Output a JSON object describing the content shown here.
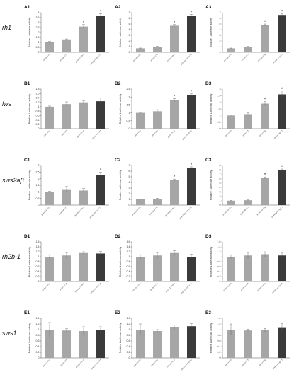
{
  "figure": {
    "rows": [
      {
        "gene": "rh1",
        "panels": [
          "A1",
          "A2",
          "A3"
        ]
      },
      {
        "gene": "lws",
        "panels": [
          "B1",
          "B2",
          "B3"
        ]
      },
      {
        "gene": "sws2aβ",
        "panels": [
          "C1",
          "C2",
          "C3"
        ]
      },
      {
        "gene": "rh2b-1",
        "panels": [
          "D1",
          "D2",
          "D3"
        ]
      },
      {
        "gene": "sws1",
        "panels": [
          "E1",
          "E2",
          "E3"
        ]
      }
    ],
    "colors": {
      "light_bar": "#a6a6a6",
      "dark_bar": "#3a3a3a",
      "axis": "#555555"
    }
  },
  "chart_data": [
    {
      "id": "A1",
      "type": "bar",
      "ylabel": "Relative Luciferase activity",
      "ylim": [
        0,
        4
      ],
      "yticks": [
        0,
        0.5,
        1,
        1.5,
        2,
        2.5,
        3,
        3.5,
        4
      ],
      "categories": [
        "prhoda+rTr",
        "prhoda+rT3",
        "prhoda+rTrb-4",
        "prhoda+rTrb-a+T3"
      ],
      "values": [
        1.0,
        1.3,
        2.6,
        3.7
      ],
      "errors": [
        0.1,
        0.05,
        0.2,
        0.2
      ],
      "significant": [
        false,
        false,
        true,
        true
      ]
    },
    {
      "id": "A2",
      "type": "bar",
      "ylabel": "Relative Luciferase activity",
      "ylim": [
        0,
        7
      ],
      "yticks": [
        0,
        1,
        2,
        3,
        4,
        5,
        6,
        7
      ],
      "categories": [
        "prhoda+rTrb",
        "prhoda+rT3",
        "prhoda+rTrb-b",
        "prhoda+rTrb-b+T3"
      ],
      "values": [
        0.7,
        1.0,
        4.7,
        6.5
      ],
      "errors": [
        0.05,
        0.05,
        0.2,
        0.2
      ],
      "significant": [
        false,
        false,
        true,
        true
      ]
    },
    {
      "id": "A3",
      "type": "bar",
      "ylabel": "Relative Luciferase activity",
      "ylim": [
        0,
        7
      ],
      "yticks": [
        0,
        1,
        2,
        3,
        4,
        5,
        6,
        7
      ],
      "categories": [
        "prhoda+rTrb",
        "prhoda+rT3",
        "prhoda+rTrg",
        "prhoda+rTrg+T3"
      ],
      "values": [
        0.7,
        1.0,
        4.8,
        6.6
      ],
      "errors": [
        0.05,
        0.05,
        0.2,
        0.2
      ],
      "significant": [
        false,
        false,
        true,
        true
      ]
    },
    {
      "id": "B1",
      "type": "bar",
      "ylabel": "Relative Luciferase activity",
      "ylim": [
        0,
        1.8
      ],
      "yticks": [
        0,
        0.2,
        0.4,
        0.6,
        0.8,
        1,
        1.2,
        1.4,
        1.6,
        1.8
      ],
      "categories": [
        "plws+rTra",
        "plws+rT3",
        "plws+rTrb-4",
        "plws+rTra+rT3"
      ],
      "values": [
        1.0,
        1.12,
        1.2,
        1.25
      ],
      "errors": [
        0.03,
        0.1,
        0.08,
        0.15
      ],
      "significant": [
        false,
        false,
        false,
        false
      ]
    },
    {
      "id": "B2",
      "type": "bar",
      "ylabel": "Relative Luciferase activity",
      "ylim": [
        0,
        2.5
      ],
      "yticks": [
        0,
        0.5,
        1,
        1.5,
        2,
        2.5
      ],
      "categories": [
        "plws+rTrb",
        "plws+rT3",
        "plws+rTrb-b",
        "plws+rTrb-b+T3"
      ],
      "values": [
        1.0,
        1.1,
        1.8,
        2.1
      ],
      "errors": [
        0.03,
        0.1,
        0.1,
        0.1
      ],
      "significant": [
        false,
        false,
        true,
        true
      ]
    },
    {
      "id": "B3",
      "type": "bar",
      "ylabel": "Relative Luciferase activity",
      "ylim": [
        0,
        3
      ],
      "yticks": [
        0,
        0.5,
        1,
        1.5,
        2,
        2.5,
        3
      ],
      "categories": [
        "plws+rTrb",
        "plws+rT3",
        "plws+rTrg",
        "plws+rTrg+T3"
      ],
      "values": [
        1.0,
        1.1,
        1.9,
        2.6
      ],
      "errors": [
        0.03,
        0.1,
        0.15,
        0.25
      ],
      "significant": [
        false,
        false,
        true,
        true
      ]
    },
    {
      "id": "C1",
      "type": "bar",
      "ylabel": "Relative Luciferase activity",
      "ylim": [
        0,
        3
      ],
      "yticks": [
        0,
        0.5,
        1,
        1.5,
        2,
        2.5,
        3
      ],
      "categories": [
        "psws2aβ+rTra",
        "psws2aβ+rT3",
        "psws2aβ+rTrb-4",
        "psws2aβ+rTra+rT3"
      ],
      "values": [
        1.0,
        1.2,
        1.1,
        2.3
      ],
      "errors": [
        0.05,
        0.2,
        0.15,
        0.2
      ],
      "significant": [
        false,
        false,
        false,
        true
      ]
    },
    {
      "id": "C2",
      "type": "bar",
      "ylabel": "Relative Luciferase activity",
      "ylim": [
        0,
        7
      ],
      "yticks": [
        0,
        1,
        2,
        3,
        4,
        5,
        6,
        7
      ],
      "categories": [
        "psws2aβ+rTrb",
        "psws2aβ+rT3",
        "psws2aβ+rTrb-b",
        "psws2aβ+rTrb-b+T3"
      ],
      "values": [
        1.0,
        1.1,
        4.4,
        6.5
      ],
      "errors": [
        0.05,
        0.1,
        0.2,
        0.25
      ],
      "significant": [
        false,
        false,
        true,
        true
      ]
    },
    {
      "id": "C3",
      "type": "bar",
      "ylabel": "Relative Luciferase activity",
      "ylim": [
        0,
        9
      ],
      "yticks": [
        0,
        1,
        2,
        3,
        4,
        5,
        6,
        7,
        8,
        9
      ],
      "categories": [
        "psws2aβ+rTrb",
        "psws2aβ+rT3",
        "psws2aβ+rTrg",
        "psws2aβ+rTrg+T3"
      ],
      "values": [
        1.0,
        1.1,
        6.2,
        7.9
      ],
      "errors": [
        0.05,
        0.1,
        0.2,
        0.3
      ],
      "significant": [
        false,
        false,
        true,
        true
      ]
    },
    {
      "id": "D1",
      "type": "bar",
      "ylabel": "Relative Luciferase activity",
      "ylim": [
        0,
        1.6
      ],
      "yticks": [
        0,
        0.2,
        0.4,
        0.6,
        0.8,
        1,
        1.2,
        1.4,
        1.6
      ],
      "categories": [
        "prh2b-1+rTra",
        "prh2b-1+rT3",
        "prh2b-1+rTrb-4",
        "prh2b-1+rTra+rT3"
      ],
      "values": [
        1.0,
        1.05,
        1.15,
        1.13
      ],
      "errors": [
        0.08,
        0.12,
        0.05,
        0.08
      ],
      "significant": [
        false,
        false,
        false,
        false
      ]
    },
    {
      "id": "D2",
      "type": "bar",
      "ylabel": "Relative Luciferase activity",
      "ylim": [
        0,
        1.6
      ],
      "yticks": [
        0,
        0.2,
        0.4,
        0.6,
        0.8,
        1,
        1.2,
        1.4,
        1.6
      ],
      "categories": [
        "prh2b-1+rTrb",
        "prh2b-1+rT3",
        "prh2b-1+rTrb-b",
        "prh2b-1+rTrb-b+T3"
      ],
      "values": [
        1.0,
        1.05,
        1.15,
        1.0
      ],
      "errors": [
        0.08,
        0.12,
        0.1,
        0.1
      ],
      "significant": [
        false,
        false,
        false,
        false
      ]
    },
    {
      "id": "D3",
      "type": "bar",
      "ylabel": "Relative Luciferase activity",
      "ylim": [
        0,
        1.6
      ],
      "yticks": [
        0,
        0.2,
        0.4,
        0.6,
        0.8,
        1,
        1.2,
        1.4,
        1.6
      ],
      "categories": [
        "prh2b-1+rTrb",
        "prh2b-1+rT3",
        "prh2b-1+rTrg",
        "prh2b-1+rTrg+T3"
      ],
      "values": [
        1.0,
        1.05,
        1.1,
        1.05
      ],
      "errors": [
        0.08,
        0.12,
        0.1,
        0.1
      ],
      "significant": [
        false,
        false,
        false,
        false
      ]
    },
    {
      "id": "E1",
      "type": "bar",
      "ylabel": "Relative Luciferase activity",
      "ylim": [
        0,
        1.4
      ],
      "yticks": [
        0,
        0.2,
        0.4,
        0.6,
        0.8,
        1,
        1.2,
        1.4
      ],
      "categories": [
        "psws1+rTra",
        "psws1+rT3",
        "psws1+rTrb-4",
        "psws1+rTra+rT3"
      ],
      "values": [
        1.0,
        0.97,
        0.95,
        0.98
      ],
      "errors": [
        0.25,
        0.06,
        0.15,
        0.12
      ],
      "significant": [
        false,
        false,
        false,
        false
      ]
    },
    {
      "id": "E2",
      "type": "bar",
      "ylabel": "Relative Luciferase activity",
      "ylim": [
        0,
        1.4
      ],
      "yticks": [
        0,
        0.2,
        0.4,
        0.6,
        0.8,
        1,
        1.2,
        1.4
      ],
      "categories": [
        "psws1+rTrb",
        "psws1+rT3",
        "psws1+rTrb-b",
        "psws1+rTrb-b+T3"
      ],
      "values": [
        1.0,
        0.95,
        1.08,
        1.12
      ],
      "errors": [
        0.2,
        0.05,
        0.08,
        0.1
      ],
      "significant": [
        false,
        false,
        false,
        false
      ]
    },
    {
      "id": "E3",
      "type": "bar",
      "ylabel": "Relative Luciferase activity",
      "ylim": [
        0,
        1.4
      ],
      "yticks": [
        0,
        0.2,
        0.4,
        0.6,
        0.8,
        1,
        1.2,
        1.4
      ],
      "categories": [
        "psws1+rTrb",
        "psws1+rT3",
        "psws1+rTrg",
        "psws1+rTrg+T3"
      ],
      "values": [
        1.0,
        0.97,
        0.98,
        1.06
      ],
      "errors": [
        0.2,
        0.05,
        0.06,
        0.15
      ],
      "significant": [
        false,
        false,
        false,
        false
      ]
    }
  ]
}
